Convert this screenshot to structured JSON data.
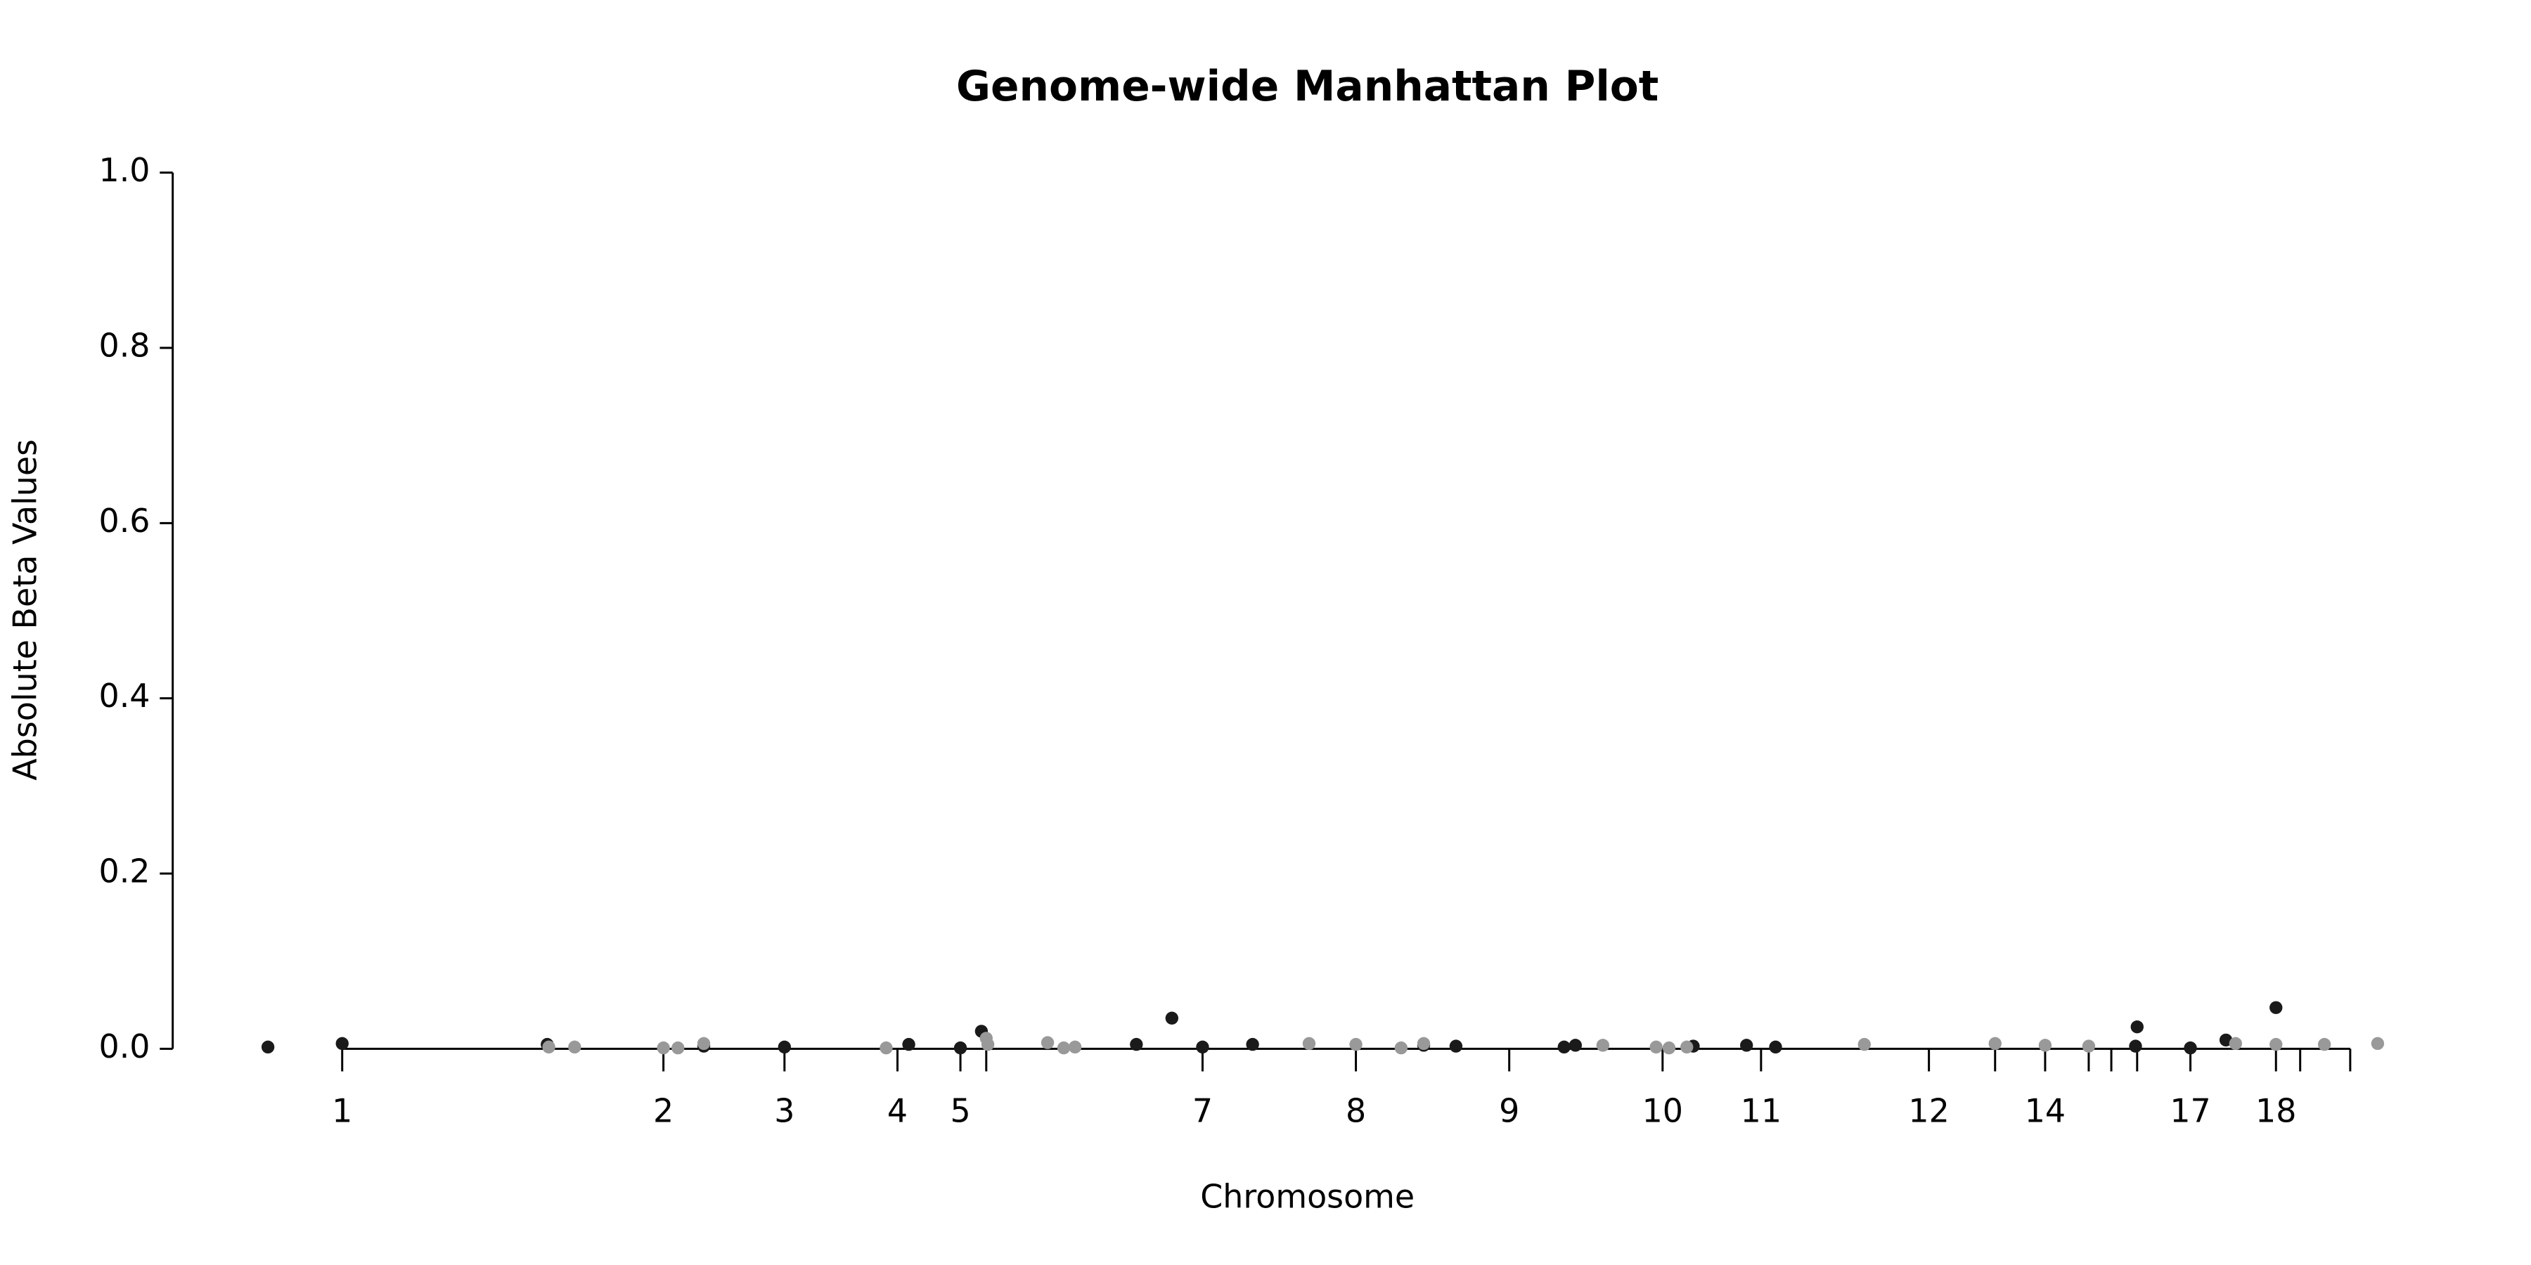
{
  "chart_data": {
    "type": "scatter",
    "title": "Genome-wide Manhattan Plot",
    "x_label": "Chromosome",
    "y_label": "Absolute Beta Values",
    "xlim": [
      0,
      1400
    ],
    "ylim": [
      0,
      1
    ],
    "yticks": [
      {
        "value": 0,
        "label": "0.0"
      },
      {
        "value": 0.2,
        "label": "0.2"
      },
      {
        "value": 0.4,
        "label": "0.4"
      },
      {
        "value": 0.6,
        "label": "0.6"
      },
      {
        "value": 0.8,
        "label": "0.8"
      },
      {
        "value": 1,
        "label": "1.0"
      }
    ],
    "xticks": [
      {
        "value": 105,
        "label": "1"
      },
      {
        "value": 304,
        "label": "2"
      },
      {
        "value": 379,
        "label": "3"
      },
      {
        "value": 449,
        "label": "4"
      },
      {
        "value": 488,
        "label": "5"
      },
      {
        "value": 504,
        "label": null
      },
      {
        "value": 638,
        "label": "7"
      },
      {
        "value": 733,
        "label": "8"
      },
      {
        "value": 828,
        "label": "9"
      },
      {
        "value": 923,
        "label": "10"
      },
      {
        "value": 984,
        "label": "11"
      },
      {
        "value": 1088,
        "label": "12"
      },
      {
        "value": 1129,
        "label": null
      },
      {
        "value": 1160,
        "label": "14"
      },
      {
        "value": 1187,
        "label": null
      },
      {
        "value": 1201,
        "label": null
      },
      {
        "value": 1217,
        "label": null
      },
      {
        "value": 1250,
        "label": "17"
      },
      {
        "value": 1303,
        "label": "18"
      },
      {
        "value": 1318,
        "label": null
      },
      {
        "value": 1349,
        "label": null
      }
    ],
    "series": [
      {
        "color": "#1a1a1a",
        "x": [
          59,
          105,
          232,
          329,
          379,
          456,
          488,
          501,
          597,
          619,
          638,
          669,
          775,
          795,
          862,
          869,
          942,
          975,
          993,
          1217,
          1216,
          1250,
          1272,
          1303
        ],
        "values": [
          0.002,
          0.006,
          0.005,
          0.003,
          0.002,
          0.005,
          0.001,
          0.02,
          0.005,
          0.035,
          0.002,
          0.005,
          0.004,
          0.003,
          0.002,
          0.004,
          0.003,
          0.004,
          0.002,
          0.025,
          0.003,
          0.001,
          0.01,
          0.047
        ]
      },
      {
        "color": "#999999",
        "x": [
          233,
          249,
          304,
          313,
          329,
          442,
          504,
          505,
          542,
          552,
          559,
          704,
          733,
          761,
          775,
          886,
          919,
          927,
          938,
          1048,
          1129,
          1160,
          1187,
          1278,
          1303,
          1333,
          1366
        ],
        "values": [
          0.002,
          0.002,
          0.001,
          0.001,
          0.006,
          0.001,
          0.012,
          0.005,
          0.007,
          0.001,
          0.002,
          0.006,
          0.005,
          0.001,
          0.006,
          0.004,
          0.002,
          0.001,
          0.002,
          0.005,
          0.006,
          0.004,
          0.003,
          0.006,
          0.005,
          0.005,
          0.006
        ]
      }
    ]
  }
}
